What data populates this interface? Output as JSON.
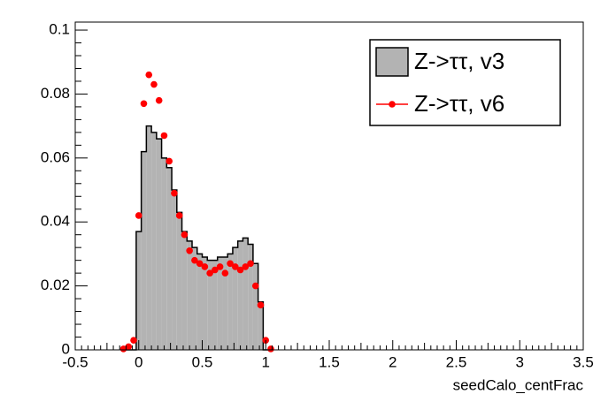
{
  "chart_data": {
    "type": "histogram",
    "x_label": "seedCalo_centFrac",
    "bins": [
      -0.14,
      -0.1,
      -0.06,
      -0.02,
      0.02,
      0.06,
      0.1,
      0.14,
      0.18,
      0.22,
      0.26,
      0.3,
      0.34,
      0.38,
      0.42,
      0.46,
      0.5,
      0.54,
      0.58,
      0.62,
      0.66,
      0.7,
      0.74,
      0.78,
      0.82,
      0.86,
      0.9,
      0.94,
      0.98,
      1.02,
      1.06
    ],
    "series": [
      {
        "name": "Z->ττ, v3",
        "color": "#b3b3b3",
        "style": "filled",
        "values": [
          0,
          0,
          0,
          0.037,
          0.062,
          0.07,
          0.068,
          0.066,
          0.06,
          0.057,
          0.05,
          0.043,
          0.037,
          0.034,
          0.032,
          0.03,
          0.029,
          0.028,
          0.028,
          0.029,
          0.029,
          0.03,
          0.032,
          0.034,
          0.035,
          0.033,
          0.027,
          0.015,
          0,
          0
        ]
      },
      {
        "name": "Z->ττ, v6",
        "color": "#ff0000",
        "style": "markers",
        "values": [
          0.0003,
          0.001,
          0.003,
          0.042,
          0.077,
          0.086,
          0.083,
          0.078,
          0.067,
          0.059,
          0.049,
          0.042,
          0.036,
          0.031,
          0.028,
          0.027,
          0.026,
          0.024,
          0.025,
          0.026,
          0.024,
          0.027,
          0.026,
          0.025,
          0.026,
          0.027,
          0.02,
          0.014,
          0.003,
          0.0003
        ]
      }
    ],
    "xlim": [
      -0.5,
      3.5
    ],
    "ylim": [
      0,
      0.1025
    ],
    "xticks": [
      -0.5,
      0,
      0.5,
      1,
      1.5,
      2,
      2.5,
      3,
      3.5
    ],
    "yticks": [
      0,
      0.02,
      0.04,
      0.06,
      0.08,
      0.1
    ],
    "legend": "top-right"
  }
}
